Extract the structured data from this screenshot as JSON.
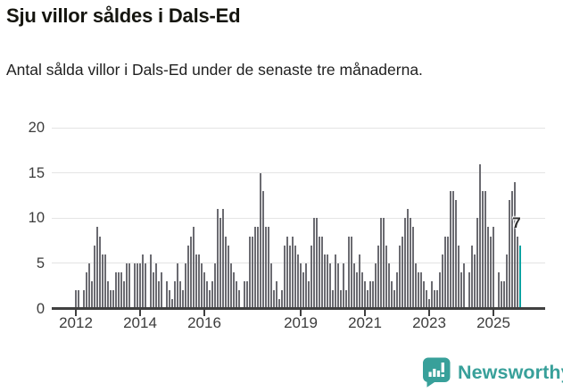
{
  "header": {
    "title": "Sju villor såldes i Dals-Ed",
    "subtitle": "Antal sålda villor i Dals-Ed under de senaste tre månaderna."
  },
  "chart_data": {
    "type": "bar",
    "title": "Sju villor såldes i Dals-Ed",
    "subtitle": "Antal sålda villor i Dals-Ed under de senaste tre månaderna.",
    "frequency": "monthly",
    "x_start": "2012-01",
    "ylim": [
      0,
      20
    ],
    "grid": "horizontal",
    "y_ticks": [
      0,
      5,
      10,
      15,
      20
    ],
    "x_ticks": [
      {
        "label": "2012",
        "month_index": 0
      },
      {
        "label": "2014",
        "month_index": 24
      },
      {
        "label": "2016",
        "month_index": 48
      },
      {
        "label": "2019",
        "month_index": 84
      },
      {
        "label": "2021",
        "month_index": 108
      },
      {
        "label": "2023",
        "month_index": 132
      },
      {
        "label": "2025",
        "month_index": 156
      }
    ],
    "values": [
      2,
      2,
      0,
      2,
      4,
      5,
      3,
      7,
      9,
      8,
      6,
      6,
      3,
      2,
      2,
      4,
      4,
      4,
      3,
      5,
      5,
      0,
      5,
      5,
      5,
      6,
      5,
      0,
      6,
      4,
      5,
      3,
      4,
      0,
      3,
      2,
      1,
      3,
      5,
      3,
      2,
      5,
      7,
      8,
      9,
      6,
      6,
      5,
      4,
      3,
      2,
      3,
      5,
      11,
      10,
      11,
      8,
      7,
      5,
      4,
      3,
      2,
      0,
      3,
      3,
      8,
      8,
      9,
      9,
      15,
      13,
      9,
      9,
      5,
      2,
      3,
      1,
      2,
      7,
      8,
      7,
      8,
      7,
      6,
      5,
      4,
      5,
      3,
      7,
      10,
      10,
      8,
      8,
      6,
      6,
      5,
      2,
      6,
      5,
      2,
      5,
      2,
      8,
      8,
      5,
      4,
      6,
      4,
      3,
      2,
      3,
      3,
      5,
      7,
      10,
      10,
      7,
      5,
      3,
      2,
      4,
      7,
      8,
      10,
      11,
      10,
      9,
      5,
      4,
      4,
      3,
      2,
      1,
      3,
      2,
      2,
      4,
      6,
      8,
      8,
      13,
      13,
      12,
      7,
      4,
      5,
      0,
      4,
      7,
      6,
      10,
      16,
      13,
      13,
      9,
      8,
      9,
      0,
      4,
      3,
      3,
      6,
      12,
      13,
      14,
      8,
      7
    ],
    "highlight": {
      "index": 166,
      "value": 7,
      "label": "7"
    },
    "colors": {
      "bar": "#6b6b71",
      "highlight": "#0ba3a2",
      "gridline": "#e4e4e4",
      "axis": "#404040",
      "tick_text": "#3c3c3c"
    }
  },
  "footer": {
    "brand": "Newsworthy",
    "brand_color": "#38a09a"
  }
}
